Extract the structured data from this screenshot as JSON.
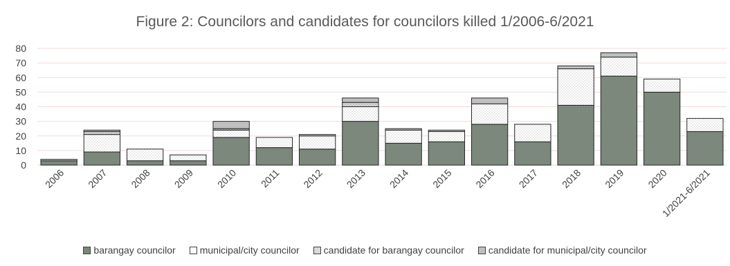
{
  "chart_data": {
    "type": "bar",
    "stacked": true,
    "title": "Figure 2: Councilors and candidates for councilors killed 1/2006-6/2021",
    "xlabel": "",
    "ylabel": "",
    "ylim": [
      0,
      80
    ],
    "yticks": [
      0,
      10,
      20,
      30,
      40,
      50,
      60,
      70,
      80
    ],
    "grid": true,
    "legend_position": "bottom",
    "categories": [
      "2006",
      "2007",
      "2008",
      "2009",
      "2010",
      "2011",
      "2012",
      "2013",
      "2014",
      "2015",
      "2016",
      "2017",
      "2018",
      "2019",
      "2020",
      "1/2021-6/2021"
    ],
    "series": [
      {
        "name": "barangay councilor",
        "color": "#7b887b",
        "pattern": "solid",
        "values": [
          3,
          9,
          3,
          3,
          19,
          12,
          11,
          30,
          15,
          16,
          28,
          16,
          41,
          61,
          50,
          23
        ]
      },
      {
        "name": "municipal/city councilor",
        "color": "#ffffff",
        "pattern": "dots",
        "values": [
          0,
          12,
          8,
          4,
          5,
          7,
          9,
          10,
          9,
          7,
          14,
          12,
          25,
          13,
          9,
          9
        ]
      },
      {
        "name": "candidate for barangay councilor",
        "color": "#d9d9d9",
        "pattern": "dots-gray",
        "values": [
          1,
          2,
          0,
          0,
          1,
          0,
          0,
          3,
          0,
          0,
          0,
          0,
          0,
          0,
          0,
          0
        ]
      },
      {
        "name": "candidate for municipal/city councilor",
        "color": "#bfbfbf",
        "pattern": "solid-gray",
        "values": [
          0,
          1,
          0,
          0,
          5,
          0,
          1,
          3,
          1,
          1,
          4,
          0,
          2,
          3,
          0,
          0
        ]
      }
    ]
  }
}
